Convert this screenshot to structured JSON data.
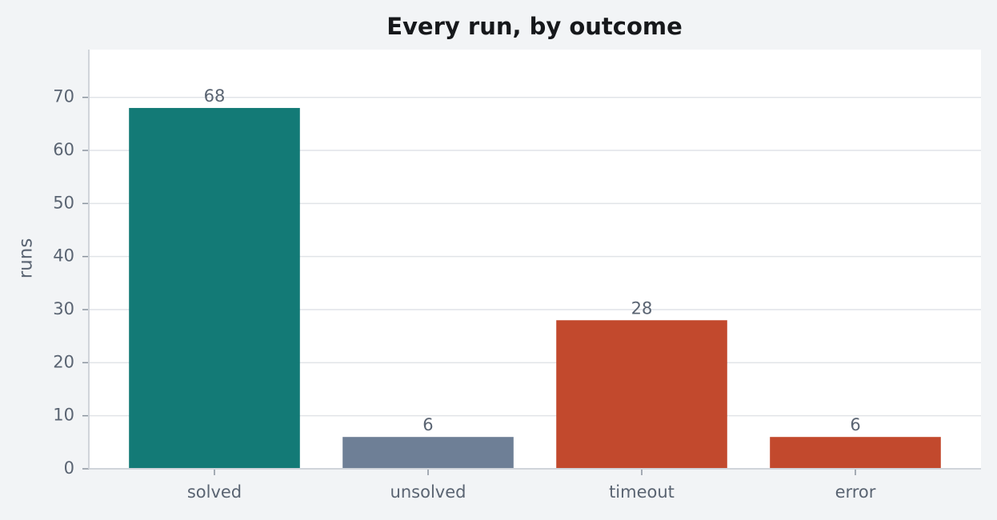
{
  "chart_data": {
    "type": "bar",
    "title": "Every run, by outcome",
    "y_label": "runs",
    "categories": [
      "solved",
      "unsolved",
      "timeout",
      "error"
    ],
    "values": [
      68,
      6,
      28,
      6
    ],
    "colors": [
      "#137a76",
      "#6e7f96",
      "#c2492d",
      "#c2492d"
    ],
    "ylim": [
      0,
      79
    ],
    "yticks": [
      0,
      10,
      20,
      30,
      40,
      50,
      60,
      70
    ],
    "grid": true
  }
}
